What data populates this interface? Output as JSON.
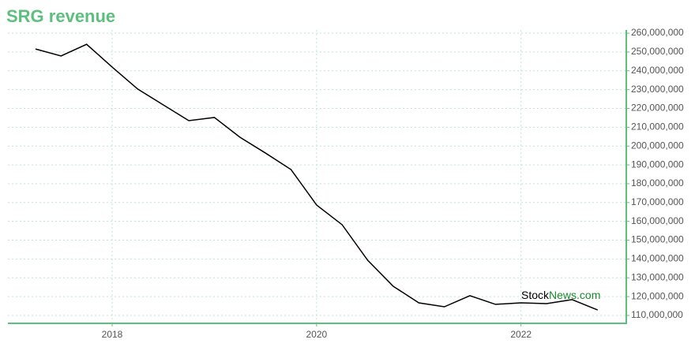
{
  "chart_data": {
    "type": "line",
    "title": "SRG revenue",
    "x": [
      2017.25,
      2017.5,
      2017.75,
      2018.0,
      2018.25,
      2018.5,
      2018.75,
      2019.0,
      2019.25,
      2019.5,
      2019.75,
      2020.0,
      2020.25,
      2020.5,
      2020.75,
      2021.0,
      2021.25,
      2021.5,
      2021.75,
      2022.0,
      2022.25,
      2022.5,
      2022.75
    ],
    "series": [
      {
        "name": "SRG revenue",
        "color": "#000000",
        "values": [
          251600000,
          247900000,
          254100000,
          242000000,
          230300000,
          221900000,
          213500000,
          215200000,
          204700000,
          196300000,
          187500000,
          168700000,
          158200000,
          139300000,
          125500000,
          116700000,
          114600000,
          120500000,
          115900000,
          116700000,
          116300000,
          118400000,
          112900000
        ]
      }
    ],
    "xlim": [
      2016.98,
      2023.03
    ],
    "xticks": [
      2018,
      2020,
      2022
    ],
    "ylim": [
      105800000,
      261700000
    ],
    "yticks": [
      {
        "value": 110000000,
        "label": "110,000,000"
      },
      {
        "value": 120000000,
        "label": "120,000,000"
      },
      {
        "value": 130000000,
        "label": "130,000,000"
      },
      {
        "value": 140000000,
        "label": "140,000,000"
      },
      {
        "value": 150000000,
        "label": "150,000,000"
      },
      {
        "value": 160000000,
        "label": "160,000,000"
      },
      {
        "value": 170000000,
        "label": "170,000,000"
      },
      {
        "value": 180000000,
        "label": "180,000,000"
      },
      {
        "value": 190000000,
        "label": "190,000,000"
      },
      {
        "value": 200000000,
        "label": "200,000,000"
      },
      {
        "value": 210000000,
        "label": "210,000,000"
      },
      {
        "value": 220000000,
        "label": "220,000,000"
      },
      {
        "value": 230000000,
        "label": "230,000,000"
      },
      {
        "value": 240000000,
        "label": "240,000,000"
      },
      {
        "value": 250000000,
        "label": "250,000,000"
      },
      {
        "value": 260000000,
        "label": "260,000,000"
      }
    ],
    "grid": true,
    "axis_color": "#5dbf7e",
    "watermark": {
      "prefix": "Stock",
      "suffix": "News.com",
      "suffix_color": "#1a8a2e"
    }
  }
}
